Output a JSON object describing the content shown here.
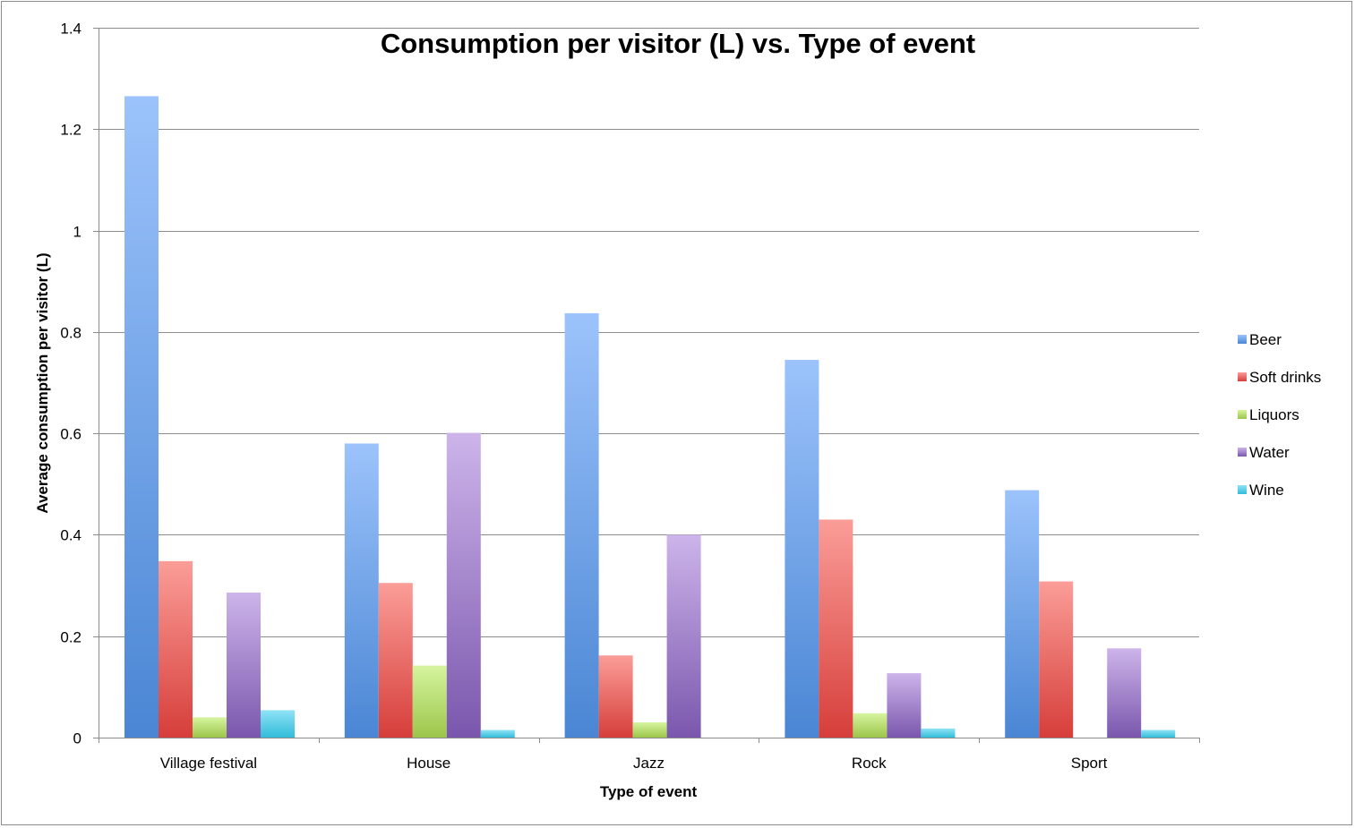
{
  "chart_data": {
    "type": "bar",
    "title": "Consumption per visitor (L) vs. Type of event",
    "xlabel": "Type of event",
    "ylabel": "Average consumption per visitor (L)",
    "ylim": [
      0,
      1.4
    ],
    "yticks": [
      "0",
      "0.2",
      "0.4",
      "0.6",
      "0.8",
      "1",
      "1.2",
      "1.4"
    ],
    "ytick_values": [
      0,
      0.2,
      0.4,
      0.6,
      0.8,
      1,
      1.2,
      1.4
    ],
    "grid": true,
    "legend_position": "right",
    "categories": [
      "Village festival",
      "House",
      "Jazz",
      "Rock",
      "Sport"
    ],
    "series": [
      {
        "name": "Beer",
        "color": "#4a86d4",
        "color_light": "#9cc3fb",
        "values": [
          1.265,
          0.58,
          0.837,
          0.745,
          0.488
        ]
      },
      {
        "name": "Soft drinks",
        "color": "#d63e3a",
        "color_light": "#fb9d98",
        "values": [
          0.348,
          0.305,
          0.162,
          0.43,
          0.308
        ]
      },
      {
        "name": "Liquors",
        "color": "#9cc64a",
        "color_light": "#d6f49f",
        "values": [
          0.04,
          0.142,
          0.03,
          0.048,
          0
        ]
      },
      {
        "name": "Water",
        "color": "#7a57ad",
        "color_light": "#cdb4ea",
        "values": [
          0.286,
          0.601,
          0.4,
          0.127,
          0.176
        ]
      },
      {
        "name": "Wine",
        "color": "#31bcd9",
        "color_light": "#8fe3f6",
        "values": [
          0.054,
          0.015,
          0,
          0.018,
          0.015
        ]
      }
    ]
  }
}
